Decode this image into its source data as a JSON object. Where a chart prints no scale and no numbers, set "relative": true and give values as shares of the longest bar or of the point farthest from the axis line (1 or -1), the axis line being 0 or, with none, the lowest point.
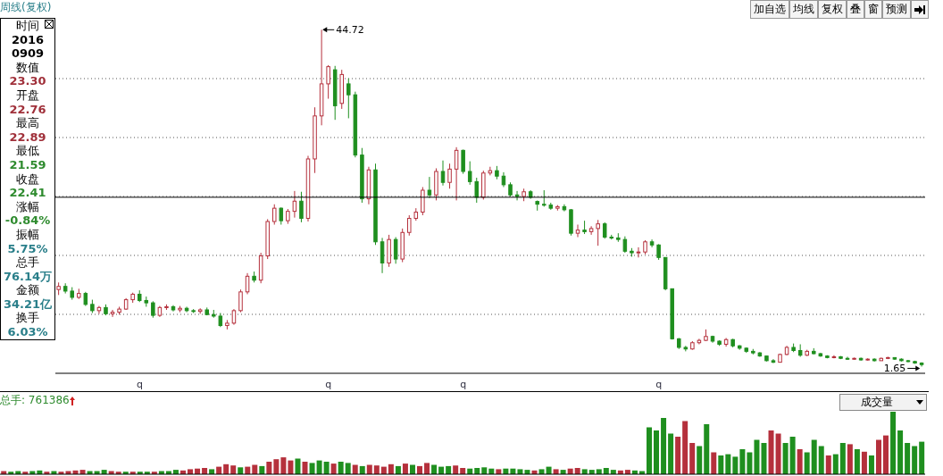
{
  "chart_data": [
    {
      "type": "candlestick",
      "title": "周线(复权)",
      "categories": [
        null,
        null,
        null,
        null,
        null,
        null,
        null,
        null,
        null,
        null,
        null,
        null,
        "q",
        null,
        null,
        null,
        null,
        null,
        null,
        null,
        null,
        null,
        null,
        null,
        null,
        null,
        null,
        null,
        null,
        null,
        null,
        null,
        null,
        null,
        null,
        null,
        null,
        null,
        null,
        null,
        "q",
        null,
        null,
        null,
        null,
        null,
        null,
        null,
        null,
        null,
        null,
        null,
        null,
        null,
        null,
        null,
        null,
        null,
        null,
        null,
        "q",
        null,
        null,
        null,
        null,
        null,
        null,
        null,
        null,
        null,
        null,
        null,
        null,
        null,
        null,
        null,
        null,
        null,
        null,
        null,
        null,
        null,
        null,
        null,
        null,
        null,
        null,
        null,
        null,
        "q",
        null,
        null,
        null,
        null,
        null,
        null,
        null,
        null,
        null,
        null,
        null,
        null,
        null,
        null,
        null,
        null,
        null,
        null,
        null,
        null,
        null,
        null,
        null,
        null,
        null,
        null,
        null,
        null,
        null,
        null,
        null,
        null,
        null,
        null,
        null,
        null,
        null,
        null,
        null
      ],
      "ohlc": [
        [
          11.5,
          12.4,
          10.8,
          11.9
        ],
        [
          11.9,
          12.3,
          11.0,
          11.3
        ],
        [
          11.3,
          11.8,
          10.2,
          10.5
        ],
        [
          10.5,
          11.6,
          10.3,
          11.0
        ],
        [
          11.0,
          11.2,
          9.4,
          9.6
        ],
        [
          9.6,
          10.2,
          8.5,
          8.8
        ],
        [
          8.8,
          9.4,
          8.4,
          9.2
        ],
        [
          9.2,
          9.6,
          8.2,
          8.4
        ],
        [
          8.4,
          8.9,
          8.0,
          8.6
        ],
        [
          8.6,
          9.3,
          8.3,
          9.0
        ],
        [
          9.0,
          10.4,
          8.9,
          10.2
        ],
        [
          10.2,
          11.1,
          9.8,
          10.9
        ],
        [
          10.9,
          11.4,
          9.9,
          10.1
        ],
        [
          10.1,
          10.6,
          9.3,
          9.8
        ],
        [
          9.8,
          10.0,
          7.9,
          8.2
        ],
        [
          8.2,
          9.4,
          8.0,
          9.2
        ],
        [
          9.2,
          9.6,
          8.9,
          9.3
        ],
        [
          9.3,
          9.5,
          8.7,
          8.9
        ],
        [
          8.9,
          9.4,
          8.6,
          9.1
        ],
        [
          9.1,
          9.3,
          8.6,
          8.8
        ],
        [
          8.8,
          9.0,
          8.5,
          8.7
        ],
        [
          8.7,
          9.1,
          8.4,
          8.9
        ],
        [
          8.9,
          9.2,
          8.2,
          8.3
        ],
        [
          8.3,
          8.9,
          7.9,
          8.1
        ],
        [
          8.1,
          8.5,
          6.7,
          6.9
        ],
        [
          6.9,
          7.6,
          6.4,
          7.2
        ],
        [
          7.2,
          9.0,
          7.0,
          8.8
        ],
        [
          8.8,
          11.5,
          8.6,
          11.2
        ],
        [
          11.2,
          13.6,
          10.9,
          13.2
        ],
        [
          13.2,
          13.8,
          12.4,
          12.7
        ],
        [
          12.7,
          16.2,
          12.3,
          15.8
        ],
        [
          15.8,
          20.5,
          15.4,
          20.2
        ],
        [
          20.2,
          22.4,
          19.8,
          21.9
        ],
        [
          21.9,
          22.0,
          19.8,
          20.3
        ],
        [
          20.3,
          21.8,
          19.9,
          21.5
        ],
        [
          21.5,
          24.1,
          20.7,
          22.8
        ],
        [
          22.8,
          24.0,
          20.1,
          20.6
        ],
        [
          20.6,
          28.6,
          20.2,
          28.2
        ],
        [
          28.2,
          34.8,
          26.4,
          33.7
        ],
        [
          33.7,
          44.72,
          32.5,
          37.8
        ],
        [
          37.8,
          40.2,
          35.9,
          40.0
        ],
        [
          39.6,
          40.1,
          33.2,
          35.0
        ],
        [
          35.3,
          39.6,
          34.6,
          39.0
        ],
        [
          37.8,
          38.5,
          33.4,
          36.4
        ],
        [
          36.4,
          36.8,
          28.4,
          28.7
        ],
        [
          28.7,
          29.6,
          22.6,
          23.1
        ],
        [
          23.1,
          27.2,
          22.4,
          26.8
        ],
        [
          26.8,
          27.6,
          17.2,
          17.6
        ],
        [
          17.6,
          18.1,
          13.6,
          14.9
        ],
        [
          14.9,
          18.5,
          14.4,
          17.9
        ],
        [
          17.9,
          18.2,
          14.8,
          15.4
        ],
        [
          15.4,
          19.3,
          15.0,
          18.8
        ],
        [
          18.8,
          21.0,
          18.4,
          20.6
        ],
        [
          20.6,
          21.9,
          20.3,
          21.4
        ],
        [
          21.4,
          24.6,
          21.0,
          24.2
        ],
        [
          24.2,
          25.9,
          23.2,
          23.6
        ],
        [
          23.6,
          27.0,
          22.9,
          26.6
        ],
        [
          26.6,
          28.0,
          24.8,
          25.2
        ],
        [
          25.2,
          27.6,
          24.4,
          26.9
        ],
        [
          26.9,
          29.7,
          22.9,
          29.3
        ],
        [
          29.3,
          29.4,
          26.3,
          26.6
        ],
        [
          26.6,
          27.9,
          24.9,
          25.3
        ],
        [
          25.3,
          25.8,
          22.6,
          23.3
        ],
        [
          23.3,
          26.7,
          23.0,
          26.4
        ],
        [
          26.4,
          27.2,
          26.1,
          26.7
        ],
        [
          26.7,
          27.3,
          25.6,
          26.0
        ],
        [
          26.0,
          26.5,
          24.6,
          24.9
        ],
        [
          24.9,
          25.2,
          23.4,
          23.6
        ],
        [
          23.6,
          24.1,
          22.9,
          23.4
        ],
        [
          23.4,
          24.4,
          22.8,
          24.0
        ],
        [
          24.0,
          24.2,
          23.1,
          23.3
        ],
        [
          22.76,
          22.89,
          21.59,
          22.41
        ],
        [
          22.4,
          24.2,
          22.1,
          22.3
        ],
        [
          22.3,
          22.6,
          21.7,
          21.9
        ],
        [
          21.9,
          22.3,
          21.6,
          22.1
        ],
        [
          22.1,
          22.4,
          21.5,
          21.7
        ],
        [
          21.7,
          21.8,
          18.4,
          18.7
        ],
        [
          18.7,
          19.8,
          18.2,
          19.1
        ],
        [
          19.1,
          20.3,
          18.6,
          18.9
        ],
        [
          18.9,
          19.6,
          18.5,
          19.3
        ],
        [
          19.3,
          20.4,
          17.1,
          19.9
        ],
        [
          19.9,
          20.1,
          18.0,
          18.2
        ],
        [
          18.2,
          18.5,
          17.9,
          18.1
        ],
        [
          18.1,
          18.7,
          17.6,
          17.9
        ],
        [
          17.9,
          18.3,
          16.2,
          16.4
        ],
        [
          16.4,
          16.8,
          15.7,
          16.2
        ],
        [
          16.2,
          16.9,
          15.6,
          16.3
        ],
        [
          16.3,
          17.8,
          16.0,
          17.6
        ],
        [
          17.6,
          17.9,
          16.9,
          17.2
        ],
        [
          17.2,
          17.3,
          15.3,
          15.6
        ],
        [
          15.6,
          15.6,
          11.4,
          11.6
        ],
        [
          11.6,
          11.6,
          5.1,
          5.2
        ],
        [
          5.2,
          5.3,
          3.9,
          4.1
        ],
        [
          4.1,
          4.3,
          3.6,
          3.9
        ],
        [
          3.9,
          4.9,
          3.8,
          4.7
        ],
        [
          4.7,
          5.2,
          4.5,
          5.0
        ],
        [
          5.0,
          6.4,
          4.9,
          5.5
        ],
        [
          5.5,
          5.6,
          4.7,
          4.9
        ],
        [
          4.9,
          5.0,
          4.3,
          4.5
        ],
        [
          4.5,
          5.3,
          4.2,
          5.1
        ],
        [
          5.1,
          5.2,
          4.1,
          4.3
        ],
        [
          4.3,
          4.4,
          3.8,
          4.0
        ],
        [
          4.0,
          4.1,
          3.4,
          3.6
        ],
        [
          3.6,
          3.9,
          3.2,
          3.4
        ],
        [
          3.4,
          3.5,
          2.9,
          3.0
        ],
        [
          3.0,
          3.0,
          2.3,
          2.4
        ],
        [
          2.4,
          2.6,
          2.1,
          2.2
        ],
        [
          2.2,
          3.3,
          2.2,
          3.2
        ],
        [
          3.2,
          4.3,
          3.1,
          4.1
        ],
        [
          4.1,
          4.6,
          3.5,
          3.7
        ],
        [
          3.7,
          4.5,
          2.9,
          3.1
        ],
        [
          3.1,
          3.8,
          3.0,
          3.6
        ],
        [
          3.6,
          4.0,
          3.2,
          3.3
        ],
        [
          3.3,
          3.4,
          2.9,
          3.0
        ],
        [
          3.0,
          3.1,
          2.7,
          2.8
        ],
        [
          2.8,
          3.1,
          2.7,
          2.9
        ],
        [
          2.9,
          3.0,
          2.6,
          2.7
        ],
        [
          2.7,
          2.9,
          2.5,
          2.6
        ],
        [
          2.6,
          2.8,
          2.5,
          2.7
        ],
        [
          2.7,
          2.8,
          2.4,
          2.5
        ],
        [
          2.5,
          2.7,
          2.4,
          2.6
        ],
        [
          2.6,
          2.7,
          2.3,
          2.4
        ],
        [
          2.4,
          2.8,
          2.4,
          2.7
        ],
        [
          2.7,
          2.9,
          2.6,
          2.8
        ],
        [
          2.8,
          2.8,
          2.5,
          2.6
        ],
        [
          2.6,
          2.7,
          2.3,
          2.4
        ],
        [
          2.4,
          2.5,
          2.2,
          2.3
        ],
        [
          2.3,
          2.4,
          2.0,
          2.1
        ],
        [
          2.1,
          2.2,
          1.65,
          1.9
        ]
      ],
      "colors": [
        "#b5303c",
        "#1f8f1f",
        "#1f8f1f",
        "#b5303c",
        "#1f8f1f",
        "#1f8f1f",
        "#b5303c",
        "#1f8f1f",
        "#b5303c",
        "#b5303c",
        "#b5303c",
        "#b5303c",
        "#1f8f1f",
        "#1f8f1f",
        "#1f8f1f",
        "#b5303c",
        "#b5303c",
        "#1f8f1f",
        "#b5303c",
        "#1f8f1f",
        "#1f8f1f",
        "#b5303c",
        "#1f8f1f",
        "#1f8f1f",
        "#1f8f1f",
        "#b5303c",
        "#b5303c",
        "#b5303c",
        "#b5303c",
        "#1f8f1f",
        "#b5303c",
        "#b5303c",
        "#b5303c",
        "#1f8f1f",
        "#b5303c",
        "#b5303c",
        "#1f8f1f",
        "#b5303c",
        "#b5303c",
        "#b5303c",
        "#b5303c",
        "#1f8f1f",
        "#b5303c",
        "#1f8f1f",
        "#1f8f1f",
        "#1f8f1f",
        "#b5303c",
        "#1f8f1f",
        "#1f8f1f",
        "#b5303c",
        "#1f8f1f",
        "#b5303c",
        "#b5303c",
        "#b5303c",
        "#b5303c",
        "#1f8f1f",
        "#b5303c",
        "#1f8f1f",
        "#b5303c",
        "#b5303c",
        "#1f8f1f",
        "#1f8f1f",
        "#1f8f1f",
        "#b5303c",
        "#b5303c",
        "#1f8f1f",
        "#1f8f1f",
        "#1f8f1f",
        "#1f8f1f",
        "#b5303c",
        "#1f8f1f",
        "#1f8f1f",
        "#1f8f1f",
        "#1f8f1f",
        "#b5303c",
        "#1f8f1f",
        "#1f8f1f",
        "#b5303c",
        "#1f8f1f",
        "#b5303c",
        "#b5303c",
        "#1f8f1f",
        "#1f8f1f",
        "#1f8f1f",
        "#1f8f1f",
        "#1f8f1f",
        "#b5303c",
        "#b5303c",
        "#1f8f1f",
        "#1f8f1f",
        "#1f8f1f",
        "#1f8f1f",
        "#1f8f1f",
        "#1f8f1f",
        "#b5303c",
        "#b5303c",
        "#b5303c",
        "#1f8f1f",
        "#1f8f1f",
        "#b5303c",
        "#1f8f1f",
        "#1f8f1f",
        "#1f8f1f",
        "#1f8f1f",
        "#1f8f1f",
        "#1f8f1f",
        "#1f8f1f",
        "#b5303c",
        "#b5303c",
        "#1f8f1f",
        "#1f8f1f",
        "#b5303c",
        "#1f8f1f",
        "#1f8f1f",
        "#1f8f1f",
        "#b5303c",
        "#1f8f1f",
        "#1f8f1f",
        "#b5303c",
        "#1f8f1f",
        "#b5303c",
        "#1f8f1f",
        "#b5303c",
        "#b5303c",
        "#1f8f1f",
        "#1f8f1f",
        "#1f8f1f",
        "#1f8f1f",
        "#1f8f1f"
      ],
      "ref_lines": [
        {
          "axis": "y",
          "value": 23.3,
          "color": "#000000"
        }
      ],
      "annotations": [
        "44.72",
        "1.65"
      ],
      "grid": "y"
    },
    {
      "type": "bar",
      "title": "总手: 761386",
      "relative": true,
      "categories": [
        null,
        null,
        null,
        null,
        null,
        null,
        null,
        null,
        null,
        null,
        null,
        null,
        null,
        null,
        null,
        null,
        null,
        null,
        null,
        null,
        null,
        null,
        null,
        null,
        null,
        null,
        null,
        null,
        null,
        null,
        null,
        null,
        null,
        null,
        null,
        null,
        null,
        null,
        null,
        null,
        null,
        null,
        null,
        null,
        null,
        null,
        null,
        null,
        null,
        null,
        null,
        null,
        null,
        null,
        null,
        null,
        null,
        null,
        null,
        null,
        null,
        null,
        null,
        null,
        null,
        null,
        null,
        null,
        null,
        null,
        null,
        null,
        null,
        null,
        null,
        null,
        null,
        null,
        null,
        null,
        null,
        null,
        null,
        null,
        null,
        null,
        null,
        null,
        null,
        null,
        null,
        null,
        null,
        null,
        null,
        null,
        null,
        null,
        null,
        null,
        null,
        null,
        null,
        null,
        null,
        null,
        null,
        null,
        null,
        null,
        null,
        null,
        null,
        null,
        null,
        null,
        null,
        null,
        null,
        null,
        null,
        null,
        null,
        null,
        null,
        null,
        null,
        null,
        null
      ],
      "values": [
        0.05,
        0.04,
        0.05,
        0.04,
        0.05,
        0.06,
        0.04,
        0.05,
        0.04,
        0.05,
        0.06,
        0.07,
        0.05,
        0.05,
        0.07,
        0.05,
        0.04,
        0.04,
        0.04,
        0.04,
        0.04,
        0.04,
        0.05,
        0.05,
        0.07,
        0.06,
        0.08,
        0.09,
        0.1,
        0.08,
        0.12,
        0.16,
        0.14,
        0.11,
        0.12,
        0.15,
        0.13,
        0.2,
        0.24,
        0.27,
        0.22,
        0.25,
        0.2,
        0.18,
        0.22,
        0.2,
        0.17,
        0.2,
        0.18,
        0.15,
        0.13,
        0.15,
        0.14,
        0.12,
        0.16,
        0.13,
        0.17,
        0.15,
        0.13,
        0.18,
        0.15,
        0.12,
        0.13,
        0.14,
        0.1,
        0.09,
        0.1,
        0.11,
        0.09,
        0.08,
        0.09,
        0.09,
        0.08,
        0.07,
        0.06,
        0.08,
        0.12,
        0.08,
        0.07,
        0.09,
        0.1,
        0.08,
        0.07,
        0.08,
        0.1,
        0.07,
        0.06,
        0.07,
        0.06,
        0.05,
        0.75,
        0.7,
        0.9,
        0.65,
        0.6,
        0.85,
        0.5,
        0.45,
        0.8,
        0.35,
        0.3,
        0.32,
        0.28,
        0.4,
        0.35,
        0.55,
        0.5,
        0.7,
        0.65,
        0.5,
        0.6,
        0.4,
        0.35,
        0.55,
        0.45,
        0.3,
        0.32,
        0.5,
        0.48,
        0.4,
        0.36,
        0.3,
        0.55,
        0.62,
        1,
        0.7,
        0.5,
        0.45,
        0.52
      ],
      "colors": [
        "#b5303c",
        "#1f8f1f",
        "#1f8f1f",
        "#b5303c",
        "#1f8f1f",
        "#1f8f1f",
        "#b5303c",
        "#1f8f1f",
        "#b5303c",
        "#b5303c",
        "#b5303c",
        "#b5303c",
        "#1f8f1f",
        "#1f8f1f",
        "#1f8f1f",
        "#b5303c",
        "#b5303c",
        "#1f8f1f",
        "#b5303c",
        "#1f8f1f",
        "#1f8f1f",
        "#b5303c",
        "#1f8f1f",
        "#1f8f1f",
        "#1f8f1f",
        "#b5303c",
        "#b5303c",
        "#b5303c",
        "#b5303c",
        "#1f8f1f",
        "#b5303c",
        "#b5303c",
        "#b5303c",
        "#1f8f1f",
        "#b5303c",
        "#b5303c",
        "#1f8f1f",
        "#b5303c",
        "#b5303c",
        "#b5303c",
        "#b5303c",
        "#1f8f1f",
        "#b5303c",
        "#1f8f1f",
        "#1f8f1f",
        "#1f8f1f",
        "#b5303c",
        "#1f8f1f",
        "#1f8f1f",
        "#b5303c",
        "#1f8f1f",
        "#b5303c",
        "#b5303c",
        "#b5303c",
        "#b5303c",
        "#1f8f1f",
        "#b5303c",
        "#1f8f1f",
        "#b5303c",
        "#b5303c",
        "#1f8f1f",
        "#1f8f1f",
        "#1f8f1f",
        "#b5303c",
        "#b5303c",
        "#1f8f1f",
        "#1f8f1f",
        "#1f8f1f",
        "#1f8f1f",
        "#b5303c",
        "#1f8f1f",
        "#1f8f1f",
        "#1f8f1f",
        "#1f8f1f",
        "#b5303c",
        "#1f8f1f",
        "#1f8f1f",
        "#b5303c",
        "#1f8f1f",
        "#b5303c",
        "#b5303c",
        "#1f8f1f",
        "#1f8f1f",
        "#1f8f1f",
        "#1f8f1f",
        "#1f8f1f",
        "#b5303c",
        "#b5303c",
        "#1f8f1f",
        "#1f8f1f",
        "#1f8f1f",
        "#1f8f1f",
        "#1f8f1f",
        "#1f8f1f",
        "#b5303c",
        "#b5303c",
        "#b5303c",
        "#1f8f1f",
        "#1f8f1f",
        "#b5303c",
        "#1f8f1f",
        "#1f8f1f",
        "#1f8f1f",
        "#1f8f1f",
        "#1f8f1f",
        "#1f8f1f",
        "#1f8f1f",
        "#b5303c",
        "#b5303c",
        "#1f8f1f",
        "#1f8f1f",
        "#b5303c",
        "#1f8f1f",
        "#1f8f1f",
        "#1f8f1f",
        "#b5303c",
        "#1f8f1f",
        "#1f8f1f",
        "#b5303c",
        "#1f8f1f",
        "#b5303c",
        "#1f8f1f",
        "#b5303c",
        "#b5303c",
        "#1f8f1f",
        "#1f8f1f",
        "#1f8f1f",
        "#1f8f1f",
        "#1f8f1f"
      ],
      "annotations": [
        "成交量"
      ]
    },
    {
      "type": "other",
      "annotations": [
        "时间",
        "2016",
        "0909",
        "数值",
        "23.30",
        "开盘",
        "22.76",
        "最高",
        "22.89",
        "最低",
        "21.59",
        "收盘",
        "22.41",
        "涨幅",
        "-0.84%",
        "振幅",
        "5.75%",
        "总手",
        "76.14万",
        "金额",
        "34.21亿",
        "换手",
        "6.03%"
      ],
      "colors": [
        "#000000",
        "#000000",
        "#000000",
        "#000000",
        "#a0303a",
        "#000000",
        "#a0303a",
        "#000000",
        "#a0303a",
        "#000000",
        "#2e8b2e",
        "#000000",
        "#2e8b2e",
        "#000000",
        "#2e8b2e",
        "#000000",
        "#2a7f8a",
        "#000000",
        "#2a7f8a",
        "#000000",
        "#2a7f8a",
        "#000000",
        "#2a7f8a"
      ]
    },
    {
      "type": "other",
      "annotations": [
        "加自选",
        "均线",
        "复权",
        "叠",
        "窗",
        "预测"
      ]
    }
  ]
}
